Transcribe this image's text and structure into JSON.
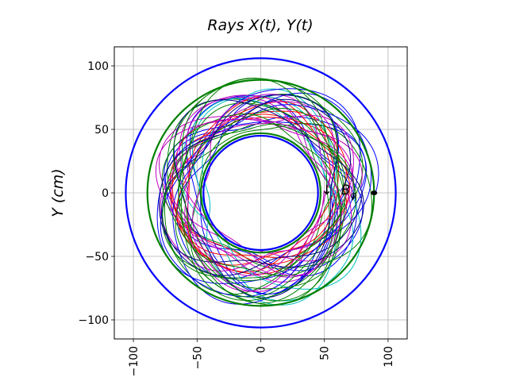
{
  "chart_data": {
    "type": "line",
    "title": "Rays  X(t), Y(t)",
    "xlabel": "",
    "ylabel": "Y  (cm)",
    "xlim": [
      -115,
      115
    ],
    "ylim": [
      -115,
      115
    ],
    "xticks": [
      -100,
      -50,
      0,
      50,
      100
    ],
    "yticks": [
      -100,
      -50,
      0,
      50,
      100
    ],
    "xtick_labels": [
      "−100",
      "−50",
      "0",
      "50",
      "100"
    ],
    "ytick_labels": [
      "−100",
      "−50",
      "0",
      "50",
      "100"
    ],
    "x_tick_rotation": "vertical",
    "grid": true,
    "legend": "none",
    "boundary_circles": [
      {
        "radius": 106,
        "color": "#0000ff"
      },
      {
        "radius": 89,
        "color": "#008000"
      },
      {
        "radius": 45,
        "color": "#0000ff"
      },
      {
        "radius": 47,
        "color": "#008000"
      }
    ],
    "rays": [
      {
        "color": "#0000ff",
        "r_min": 52,
        "r_max": 80,
        "cx": 4,
        "cy": 2
      },
      {
        "color": "#008000",
        "r_min": 50,
        "r_max": 86,
        "cx": 2,
        "cy": -2
      },
      {
        "color": "#ff0000",
        "r_min": 55,
        "r_max": 70,
        "cx": -2,
        "cy": 4
      },
      {
        "color": "#00bfbf",
        "r_min": 48,
        "r_max": 84,
        "cx": 6,
        "cy": -4
      },
      {
        "color": "#bf00bf",
        "r_min": 53,
        "r_max": 78,
        "cx": -5,
        "cy": 2
      },
      {
        "color": "#0000ff",
        "r_min": 60,
        "r_max": 90,
        "cx": 3,
        "cy": 0
      },
      {
        "color": "#008000",
        "r_min": 57,
        "r_max": 76,
        "cx": -3,
        "cy": -5
      },
      {
        "color": "#bf00bf",
        "r_min": 49,
        "r_max": 74,
        "cx": 5,
        "cy": 5
      },
      {
        "color": "#000080",
        "r_min": 56,
        "r_max": 82,
        "cx": -1,
        "cy": 1
      },
      {
        "color": "#008000",
        "r_min": 62,
        "r_max": 88,
        "cx": 0,
        "cy": 3
      }
    ],
    "source_point": {
      "x": 89,
      "y": 0
    },
    "annotation": {
      "text": "B",
      "subscript": "φ",
      "arrow": "↓",
      "x": 63,
      "y": 0
    }
  },
  "colors": {
    "axis": "#000000",
    "grid": "#b0b0b0",
    "background": "#ffffff"
  }
}
